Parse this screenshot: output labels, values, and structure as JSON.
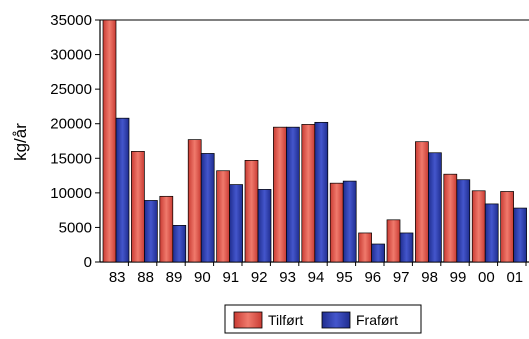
{
  "chart_data": {
    "type": "bar",
    "categories": [
      "83",
      "88",
      "89",
      "90",
      "91",
      "92",
      "93",
      "94",
      "95",
      "96",
      "97",
      "98",
      "99",
      "00",
      "01"
    ],
    "series": [
      {
        "name": "Tilført",
        "color": "#e0584f",
        "values": [
          35000,
          16000,
          9500,
          17700,
          13200,
          14700,
          19500,
          19900,
          11400,
          4200,
          6100,
          17400,
          12700,
          10300,
          10200
        ]
      },
      {
        "name": "Fraført",
        "color": "#2f3fb0",
        "values": [
          20800,
          8900,
          5300,
          15700,
          11200,
          10500,
          19500,
          20200,
          11700,
          2600,
          4200,
          15800,
          11900,
          8400,
          7800
        ]
      }
    ],
    "ylabel": "kg/år",
    "ylim": [
      0,
      35000
    ],
    "yticks": [
      0,
      5000,
      10000,
      15000,
      20000,
      25000,
      30000,
      35000
    ],
    "grid": false,
    "legend_position": "bottom"
  }
}
